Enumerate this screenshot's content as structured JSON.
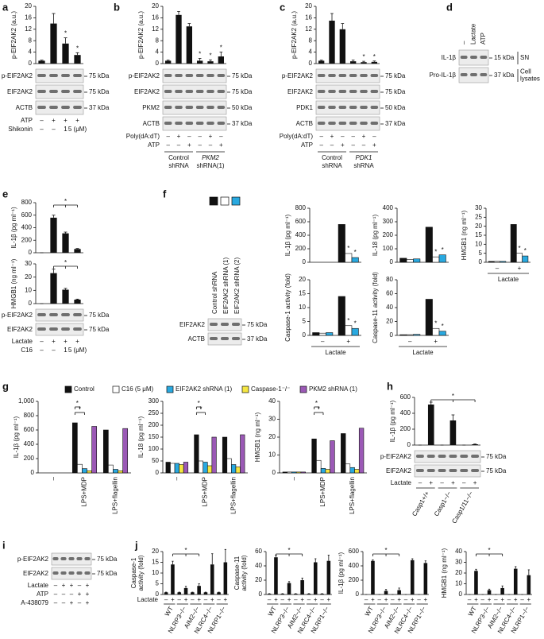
{
  "panels": [
    {
      "letter": "a",
      "charts": [
        {
          "type": "bar",
          "ylabel": "p-EIF2AK2 (a.u.)",
          "ylim": [
            0,
            20
          ],
          "yticks": [
            0,
            4,
            8,
            12,
            16,
            20
          ],
          "values": [
            1,
            14,
            7,
            3
          ],
          "errors": [
            0.2,
            3.5,
            2,
            0.8
          ],
          "annotations": [
            null,
            null,
            "*",
            "*"
          ],
          "color": "#111111"
        }
      ],
      "blot": {
        "rows": [
          {
            "label": "p-EIF2AK2",
            "size": "75 kDa"
          },
          {
            "label": "EIF2AK2",
            "size": "75 kDa"
          },
          {
            "label": "ACTB",
            "size": "37 kDa"
          }
        ]
      },
      "conditions": [
        {
          "label": "ATP",
          "values": [
            "–",
            "+",
            "+",
            "+"
          ]
        },
        {
          "label": "Shikonin",
          "values": [
            "–",
            "–",
            "1",
            "5 (μM)"
          ]
        }
      ]
    },
    {
      "letter": "b",
      "charts": [
        {
          "type": "bar",
          "ylabel": "p-EIF2AK2 (a.u.)",
          "ylim": [
            0,
            20
          ],
          "yticks": [
            0,
            4,
            8,
            12,
            16,
            20
          ],
          "values": [
            1,
            17,
            13,
            1,
            0.8,
            2.5
          ],
          "errors": [
            0.2,
            1.2,
            1,
            0.8,
            0.5,
            1.5
          ],
          "annotations": [
            null,
            null,
            null,
            "*",
            "*",
            "*"
          ],
          "color": "#111111"
        }
      ],
      "blot": {
        "rows": [
          {
            "label": "p-EIF2AK2",
            "size": "75 kDa"
          },
          {
            "label": "EIF2AK2",
            "size": "75 kDa"
          },
          {
            "label": "PKM2",
            "size": "50 kDa"
          },
          {
            "label": "ACTB",
            "size": "37 kDa"
          }
        ]
      },
      "conditions": [
        {
          "label": "Poly(dA:dT)",
          "values": [
            "–",
            "+",
            "–",
            "–",
            "+",
            "–"
          ]
        },
        {
          "label": "ATP",
          "values": [
            "–",
            "–",
            "+",
            "–",
            "–",
            "+"
          ]
        }
      ],
      "groups": [
        [
          "Control",
          "shRNA"
        ],
        [
          "PKM2",
          "shRNA(1)"
        ]
      ]
    },
    {
      "letter": "c",
      "charts": [
        {
          "type": "bar",
          "ylabel": "p-EIF2AK2 (a.u.)",
          "ylim": [
            0,
            20
          ],
          "yticks": [
            0,
            4,
            8,
            12,
            16,
            20
          ],
          "values": [
            1,
            15,
            12,
            0.8,
            0.5,
            0.6
          ],
          "errors": [
            0.2,
            2.5,
            2,
            0.4,
            0.3,
            0.3
          ],
          "annotations": [
            null,
            null,
            null,
            null,
            "*",
            "*"
          ],
          "color": "#111111"
        }
      ],
      "blot": {
        "rows": [
          {
            "label": "p-EIF2AK2",
            "size": "75 kDa"
          },
          {
            "label": "EIF2AK2",
            "size": "75 kDa"
          },
          {
            "label": "PDK1",
            "size": "50 kDa"
          },
          {
            "label": "ACTB",
            "size": "37 kDa"
          }
        ]
      },
      "conditions": [
        {
          "label": "Poly(dA:dT)",
          "values": [
            "–",
            "+",
            "–",
            "–",
            "+",
            "–"
          ]
        },
        {
          "label": "ATP",
          "values": [
            "–",
            "–",
            "+",
            "–",
            "–",
            "+"
          ]
        }
      ],
      "groups": [
        [
          "Control",
          "shRNA"
        ],
        [
          "PDK1",
          "shRNA"
        ]
      ]
    },
    {
      "letter": "d",
      "lanes": [
        "–",
        "Lactate",
        "ATP"
      ],
      "blot": {
        "rows": [
          {
            "label": "IL-1β",
            "size": "15 kDa",
            "side": [
              "SN"
            ]
          },
          {
            "label": "Pro-IL-1β",
            "size": "37 kDa",
            "side": [
              "Cell",
              "lysates"
            ]
          }
        ]
      }
    },
    {
      "letter": "e",
      "charts": [
        {
          "type": "bar",
          "ylabel": "IL-1β (pg ml⁻¹)",
          "ylim": [
            0,
            800
          ],
          "yticks": [
            0,
            200,
            400,
            600,
            800
          ],
          "values": [
            0,
            560,
            310,
            60
          ],
          "errors": [
            0,
            40,
            20,
            8
          ],
          "brackets": [
            "*"
          ],
          "color": "#111111"
        },
        {
          "type": "bar",
          "ylabel": "HMGB1 (ng ml⁻¹)",
          "ylim": [
            0,
            30
          ],
          "yticks": [
            0,
            10,
            20,
            30
          ],
          "values": [
            0,
            23,
            10.5,
            3
          ],
          "errors": [
            0,
            3,
            1,
            0.4
          ],
          "brackets": [
            "*"
          ],
          "color": "#111111"
        }
      ],
      "blot": {
        "rows": [
          {
            "label": "p-EIF2AK2",
            "size": "75 kDa"
          },
          {
            "label": "EIF2AK2",
            "size": "75 kDa"
          }
        ]
      },
      "conditions": [
        {
          "label": "Lactate",
          "values": [
            "–",
            "+",
            "+",
            "+"
          ]
        },
        {
          "label": "C16",
          "values": [
            "–",
            "–",
            "1",
            "5 (μM)"
          ]
        }
      ]
    },
    {
      "letter": "f",
      "legend": [
        {
          "name": "Control shRNA",
          "color": "#111111"
        },
        {
          "name": "EIF2AK2 shRNA (1)",
          "color": "#ffffff"
        },
        {
          "name": "EIF2AK2 shRNA (2)",
          "color": "#29a9e0"
        }
      ],
      "blot": {
        "rows": [
          {
            "label": "EIF2AK2",
            "size": "75 kDa"
          },
          {
            "label": "ACTB",
            "size": "37 kDa"
          }
        ]
      },
      "x_categories": [
        "–",
        "+"
      ],
      "xlabel": "Lactate",
      "charts": [
        {
          "type": "grouped_bar",
          "ylabel": "IL-1β (pg ml⁻¹)",
          "ylim": [
            0,
            800
          ],
          "yticks": [
            0,
            200,
            400,
            600,
            800
          ],
          "values": [
            [
              0,
              560
            ],
            [
              0,
              130
            ],
            [
              0,
              70
            ]
          ],
          "annotations": [
            [
              null,
              null
            ],
            [
              null,
              "*"
            ],
            [
              null,
              "*"
            ]
          ]
        },
        {
          "type": "grouped_bar",
          "ylabel": "IL-18 (pg ml⁻¹)",
          "ylim": [
            0,
            400
          ],
          "yticks": [
            0,
            100,
            200,
            300,
            400
          ],
          "values": [
            [
              30,
              260
            ],
            [
              20,
              40
            ],
            [
              25,
              55
            ]
          ],
          "annotations": [
            [
              null,
              null
            ],
            [
              null,
              "*"
            ],
            [
              null,
              "*"
            ]
          ]
        },
        {
          "type": "grouped_bar",
          "ylabel": "HMGB1 (ng ml⁻¹)",
          "ylim": [
            0,
            30
          ],
          "yticks": [
            0,
            5,
            10,
            15,
            20,
            25,
            30
          ],
          "values": [
            [
              0.5,
              21
            ],
            [
              0.5,
              5
            ],
            [
              0.5,
              3.5
            ]
          ],
          "annotations": [
            [
              null,
              null
            ],
            [
              null,
              "*"
            ],
            [
              null,
              "*"
            ]
          ]
        },
        {
          "type": "grouped_bar",
          "ylabel": "Caspase-1 activity (fold)",
          "ylim": [
            0,
            20
          ],
          "yticks": [
            0,
            5,
            10,
            15,
            20
          ],
          "values": [
            [
              1,
              14
            ],
            [
              0.8,
              3.5
            ],
            [
              1,
              2.5
            ]
          ],
          "annotations": [
            [
              null,
              null
            ],
            [
              null,
              "*"
            ],
            [
              null,
              "*"
            ]
          ]
        },
        {
          "type": "grouped_bar",
          "ylabel": "Caspase-11 activity (fold)",
          "ylim": [
            0,
            80
          ],
          "yticks": [
            0,
            20,
            40,
            60,
            80
          ],
          "values": [
            [
              1,
              52
            ],
            [
              1,
              10
            ],
            [
              1.5,
              6
            ]
          ],
          "annotations": [
            [
              null,
              null
            ],
            [
              null,
              "*"
            ],
            [
              null,
              "*"
            ]
          ]
        }
      ]
    },
    {
      "letter": "g",
      "legend": [
        {
          "name": "Control",
          "color": "#111111"
        },
        {
          "name": "C16 (5 μM)",
          "color": "#ffffff"
        },
        {
          "name": "EIF2AK2 shRNA (1)",
          "color": "#29a9e0"
        },
        {
          "name": "Caspase-1⁻/⁻",
          "color": "#f5e642"
        },
        {
          "name": "PKM2 shRNA (1)",
          "color": "#9b59b6"
        }
      ],
      "categories": [
        "–",
        "LPS+MDP",
        "LPS+flagellin"
      ],
      "charts": [
        {
          "type": "grouped_bar",
          "ylabel": "IL-1β (pg ml⁻¹)",
          "ylim": [
            0,
            1000
          ],
          "yticks": [
            0,
            200,
            400,
            600,
            800,
            {
              "value": 1000,
              "label": "1,000"
            }
          ],
          "values": [
            [
              0,
              700,
              600
            ],
            [
              0,
              120,
              110
            ],
            [
              0,
              60,
              50
            ],
            [
              0,
              30,
              30
            ],
            [
              0,
              650,
              620
            ]
          ],
          "brackets": [
            "*",
            "*"
          ]
        },
        {
          "type": "grouped_bar",
          "ylabel": "IL-18 (pg ml⁻¹)",
          "ylim": [
            0,
            300
          ],
          "yticks": [
            0,
            50,
            100,
            150,
            200,
            250,
            300
          ],
          "values": [
            [
              45,
              160,
              150
            ],
            [
              40,
              50,
              60
            ],
            [
              40,
              45,
              35
            ],
            [
              35,
              30,
              25
            ],
            [
              45,
              150,
              160
            ]
          ],
          "brackets": [
            "*",
            "*"
          ]
        },
        {
          "type": "grouped_bar",
          "ylabel": "HMGB1 (ng ml⁻¹)",
          "ylim": [
            0,
            40
          ],
          "yticks": [
            0,
            10,
            20,
            30,
            40
          ],
          "values": [
            [
              0.5,
              19,
              22
            ],
            [
              0.5,
              7,
              5
            ],
            [
              0.5,
              2.5,
              3
            ],
            [
              0.5,
              2,
              2
            ],
            [
              0.5,
              18,
              25
            ]
          ],
          "brackets": [
            "*",
            "*"
          ]
        }
      ]
    },
    {
      "letter": "h",
      "charts": [
        {
          "type": "bar",
          "ylabel": "IL-1β (pg ml⁻¹)",
          "ylim": [
            0,
            600
          ],
          "yticks": [
            0,
            200,
            400,
            600
          ],
          "values": [
            0,
            510,
            0,
            310,
            0,
            10
          ],
          "errors": [
            0,
            30,
            0,
            70,
            0,
            3
          ],
          "brackets": [
            "*"
          ],
          "color": "#111111"
        }
      ],
      "blot": {
        "rows": [
          {
            "label": "p-EIF2AK2",
            "size": "75 kDa"
          },
          {
            "label": "EIF2AK2",
            "size": "75 kDa"
          }
        ]
      },
      "conditions": [
        {
          "label": "Lactate",
          "values": [
            "–",
            "+",
            "–",
            "+",
            "–",
            "+"
          ]
        }
      ],
      "genotypes": [
        "Casp1+/+",
        "Casp1−/−",
        "Casp1/11−/−"
      ]
    },
    {
      "letter": "i",
      "blot": {
        "rows": [
          {
            "label": "p-EIF2AK2",
            "size": "75 kDa"
          },
          {
            "label": "EIF2AK2",
            "size": "75 kDa"
          }
        ]
      },
      "conditions": [
        {
          "label": "Lactate",
          "values": [
            "–",
            "+",
            "+",
            "–",
            "+"
          ]
        },
        {
          "label": "ATP",
          "values": [
            "–",
            "–",
            "–",
            "+",
            "+"
          ]
        },
        {
          "label": "A-438079",
          "values": [
            "–",
            "–",
            "+",
            "–",
            "+"
          ]
        }
      ]
    },
    {
      "letter": "j",
      "conditions": [
        {
          "label": "Lactate",
          "values": [
            "–",
            "+",
            "–",
            "+",
            "–",
            "+",
            "–",
            "+",
            "–",
            "+"
          ]
        }
      ],
      "genotypes": [
        "WT",
        "NLRP3−/−",
        "AIM2−/−",
        "NLRC4−/−",
        "NLRP1−/−"
      ],
      "charts": [
        {
          "type": "bar",
          "ylabel": [
            "Caspase-1",
            "activity (fold)"
          ],
          "ylim": [
            0,
            20
          ],
          "yticks": [
            0,
            5,
            10,
            15,
            20
          ],
          "values": [
            1,
            14,
            1,
            3,
            1,
            4,
            1,
            14,
            1,
            15
          ],
          "errors": [
            0.1,
            1.5,
            0.1,
            0.8,
            0.1,
            1,
            0.1,
            5,
            0.1,
            6
          ],
          "brackets": [
            "*"
          ],
          "color": "#111111"
        },
        {
          "type": "bar",
          "ylabel": [
            "Caspase-11",
            "activity (fold)"
          ],
          "ylim": [
            0,
            60
          ],
          "yticks": [
            0,
            20,
            40,
            60
          ],
          "values": [
            1,
            52,
            1,
            16,
            1,
            20,
            1,
            45,
            1,
            47
          ],
          "errors": [
            0.2,
            3,
            0.2,
            2,
            0.2,
            3,
            0.2,
            5,
            0.2,
            8
          ],
          "brackets": [
            "*"
          ],
          "color": "#111111"
        },
        {
          "type": "bar",
          "ylabel": "IL-1β (pg ml⁻¹)",
          "ylim": [
            0,
            600
          ],
          "yticks": [
            0,
            200,
            400,
            600
          ],
          "values": [
            0,
            470,
            0,
            50,
            0,
            60,
            0,
            480,
            0,
            440
          ],
          "errors": [
            0,
            15,
            0,
            20,
            0,
            30,
            0,
            20,
            0,
            30
          ],
          "brackets": [
            "*"
          ],
          "color": "#111111"
        },
        {
          "type": "bar",
          "ylabel": "HMGB1 (ng ml⁻¹)",
          "ylim": [
            0,
            40
          ],
          "yticks": [
            0,
            10,
            20,
            30,
            40
          ],
          "values": [
            0,
            22,
            0,
            4,
            0,
            6,
            0,
            24,
            0,
            18
          ],
          "errors": [
            0,
            1.5,
            0,
            1,
            0,
            2,
            0,
            2,
            0,
            5
          ],
          "brackets": [
            "*"
          ],
          "color": "#111111"
        }
      ]
    }
  ]
}
